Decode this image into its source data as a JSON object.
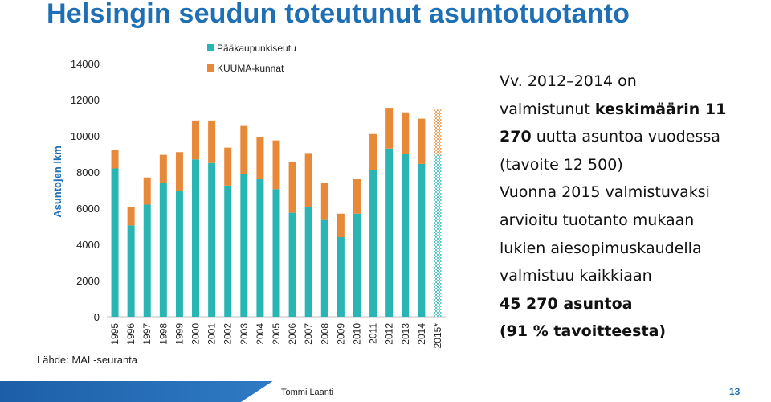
{
  "slide": {
    "title": "Helsingin seudun toteutunut asuntotuotanto",
    "source": "Lähde: MAL-seuranta",
    "text_lines": [
      {
        "parts": [
          {
            "t": "Vv. 2012–2014 on",
            "b": false
          }
        ]
      },
      {
        "parts": [
          {
            "t": "valmistunut ",
            "b": false
          },
          {
            "t": "keskimäärin 11",
            "b": true
          }
        ]
      },
      {
        "parts": [
          {
            "t": "270",
            "b": true
          },
          {
            "t": " uutta asuntoa vuodessa",
            "b": false
          }
        ]
      },
      {
        "parts": [
          {
            "t": "(tavoite 12 500)",
            "b": false
          }
        ]
      },
      {
        "parts": [
          {
            "t": "Vuonna 2015 valmistuvaksi",
            "b": false
          }
        ]
      },
      {
        "parts": [
          {
            "t": "arvioitu tuotanto mukaan",
            "b": false
          }
        ]
      },
      {
        "parts": [
          {
            "t": "lukien aiesopimuskaudella",
            "b": false
          }
        ]
      },
      {
        "parts": [
          {
            "t": "valmistuu kaikkiaan",
            "b": false
          }
        ]
      },
      {
        "parts": [
          {
            "t": "45 270 asuntoa",
            "b": true
          }
        ]
      },
      {
        "parts": [
          {
            "t": "(91 % tavoitteesta)",
            "b": true
          }
        ]
      }
    ],
    "footer": {
      "author": "Tommi Laanti",
      "page": "13"
    }
  },
  "colors": {
    "title": "#1f6fb5",
    "series_pk": "#2ab5b5",
    "series_kuuma": "#e8893a"
  },
  "chart_data": {
    "type": "bar",
    "stacked": true,
    "ylabel": "Asuntojen lkm",
    "xlabel": "",
    "ylim": [
      0,
      14000
    ],
    "yticks": [
      0,
      2000,
      4000,
      6000,
      8000,
      10000,
      12000,
      14000
    ],
    "yticklabels": [
      "0",
      "2000",
      "4000",
      "6000",
      "8000",
      "10000",
      "12000",
      "14000"
    ],
    "legend_position": "top",
    "categories": [
      "1995",
      "1996",
      "1997",
      "1998",
      "1999",
      "2000",
      "2001",
      "2002",
      "2003",
      "2004",
      "2005",
      "2006",
      "2007",
      "2008",
      "2009",
      "2010",
      "2011",
      "2012",
      "2013",
      "2014",
      "2015*"
    ],
    "forecast_categories": [
      "2015*"
    ],
    "series": [
      {
        "name": "Pääkaupunkiseutu",
        "color": "#2ab5b5",
        "values": [
          8200,
          5050,
          6200,
          7400,
          6950,
          8700,
          8500,
          7250,
          7900,
          7600,
          7050,
          5750,
          6050,
          5350,
          4400,
          5700,
          8100,
          9300,
          9000,
          8450,
          8950
        ]
      },
      {
        "name": "KUUMA-kunnat",
        "color": "#e8893a",
        "values": [
          1000,
          1000,
          1500,
          1550,
          2150,
          2150,
          2350,
          2100,
          2650,
          2350,
          2700,
          2800,
          3000,
          2050,
          1300,
          1900,
          2000,
          2250,
          2300,
          2500,
          2500
        ]
      }
    ]
  }
}
